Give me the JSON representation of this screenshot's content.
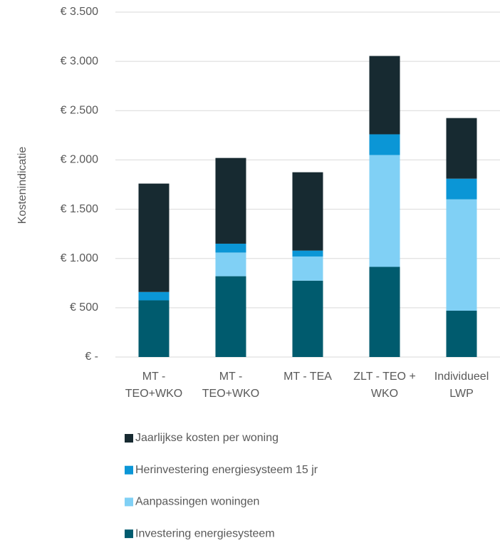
{
  "chart_data": {
    "type": "stacked_bar",
    "y_label": "Kostenindicatie",
    "categories": [
      "MT - TEO+WKO",
      "MT - TEO+WKO",
      "MT - TEA",
      "ZLT - TEO + WKO",
      "Individueel LWP"
    ],
    "series": [
      {
        "name": "Investering energiesysteem",
        "color": "#005b6e",
        "values": [
          575,
          820,
          775,
          915,
          470
        ]
      },
      {
        "name": "Aanpassingen woningen",
        "color": "#80d0f5",
        "values": [
          0,
          240,
          245,
          1135,
          1130
        ]
      },
      {
        "name": "Herinvestering energiesysteem 15 jr",
        "color": "#0b96d6",
        "values": [
          85,
          90,
          60,
          210,
          210
        ]
      },
      {
        "name": "Jaarlijkse kosten per woning",
        "color": "#172a31",
        "values": [
          1100,
          870,
          795,
          795,
          615
        ]
      }
    ],
    "ylim": [
      0,
      3500
    ],
    "yticks": [
      {
        "value": 0,
        "label": "€ -"
      },
      {
        "value": 500,
        "label": "€ 500"
      },
      {
        "value": 1000,
        "label": "€ 1.000"
      },
      {
        "value": 1500,
        "label": "€ 1.500"
      },
      {
        "value": 2000,
        "label": "€ 2.000"
      },
      {
        "value": 2500,
        "label": "€ 2.500"
      },
      {
        "value": 3000,
        "label": "€ 3.000"
      },
      {
        "value": 3500,
        "label": "€ 3.500"
      }
    ],
    "grid": true
  }
}
